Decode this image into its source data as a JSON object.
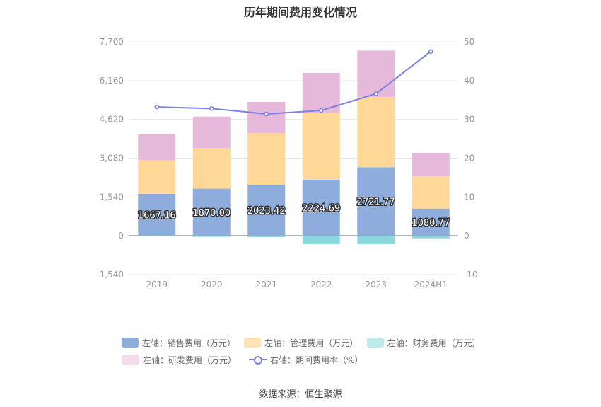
{
  "chart_data": {
    "type": "bar",
    "title": "历年期间费用变化情况",
    "categories": [
      "2019",
      "2020",
      "2021",
      "2022",
      "2023",
      "2024H1"
    ],
    "left_axis": {
      "ylim": [
        -1540,
        7700
      ],
      "ticks": [
        "7,700",
        "6,160",
        "4,620",
        "3,080",
        "1,540",
        "0",
        "-1,540"
      ]
    },
    "right_axis": {
      "ylim": [
        -10,
        50
      ],
      "ticks": [
        "50",
        "40",
        "30",
        "20",
        "10",
        "0",
        "-10"
      ]
    },
    "series": [
      {
        "name": "左轴：销售费用（万元）",
        "color": "#8eaddc",
        "values": [
          1667.16,
          1870.0,
          2023.42,
          2224.69,
          2721.77,
          1080.77
        ],
        "labels": [
          "1667.16",
          "1870.00",
          "2023.42",
          "2224.69",
          "2721.77",
          "1080.77"
        ]
      },
      {
        "name": "左轴：管理费用（万元）",
        "color": "#ffd897",
        "values": [
          1330,
          1610,
          2050,
          2660,
          2790,
          1280
        ]
      },
      {
        "name": "左轴：财务费用（万元）",
        "color": "#8ad8dc",
        "values": [
          -20,
          -40,
          -50,
          -330,
          -330,
          -100
        ]
      },
      {
        "name": "左轴：研发费用（万元）",
        "color": "#e6b8da",
        "values": [
          1040,
          1250,
          1240,
          1580,
          1840,
          930
        ]
      }
    ],
    "line_series": {
      "name": "右轴：期间费用率（%）",
      "color": "#7b7fe8",
      "values": [
        33.2,
        32.8,
        31.4,
        32.3,
        36.6,
        47.5
      ]
    },
    "grid": true,
    "legend_position": "bottom"
  },
  "legend_items": [
    {
      "label": "左轴：销售费用（万元）",
      "color": "#8eaddc"
    },
    {
      "label": "左轴：管理费用（万元）",
      "color": "#ffe3b8"
    },
    {
      "label": "左轴：财务费用（万元）",
      "color": "#bde9eb"
    },
    {
      "label": "左轴：研发费用（万元）",
      "color": "#f3dcec"
    },
    {
      "label": "右轴：期间费用率（%）",
      "color": "#7b7fe8"
    }
  ],
  "source": "数据来源：恒生聚源"
}
